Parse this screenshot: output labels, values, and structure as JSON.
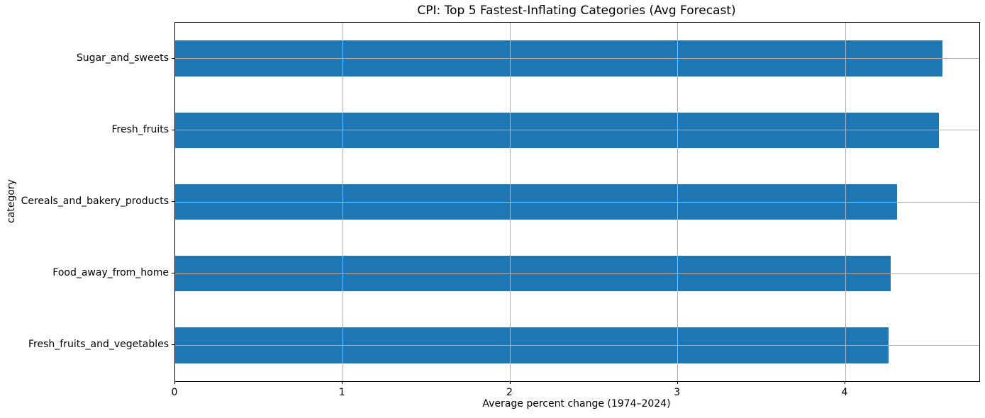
{
  "chart_data": {
    "type": "bar",
    "orientation": "horizontal",
    "title": "CPI: Top 5 Fastest-Inflating Categories (Avg Forecast)",
    "xlabel": "Average percent change (1974–2024)",
    "ylabel": "category",
    "categories": [
      "Sugar_and_sweets",
      "Fresh_fruits",
      "Cereals_and_bakery_products",
      "Food_away_from_home",
      "Fresh_fruits_and_vegetables"
    ],
    "values": [
      4.58,
      4.56,
      4.31,
      4.27,
      4.26
    ],
    "xticks": [
      "0",
      "1",
      "2",
      "3",
      "4"
    ],
    "xtick_values": [
      0,
      1,
      2,
      3,
      4
    ],
    "xlim": [
      0,
      4.8
    ],
    "grid": true,
    "legend_position": "none",
    "bar_color": "#1f77b4",
    "grid_color": "#b0b0b0",
    "axis_color": "#000000",
    "background_color": "#ffffff"
  }
}
